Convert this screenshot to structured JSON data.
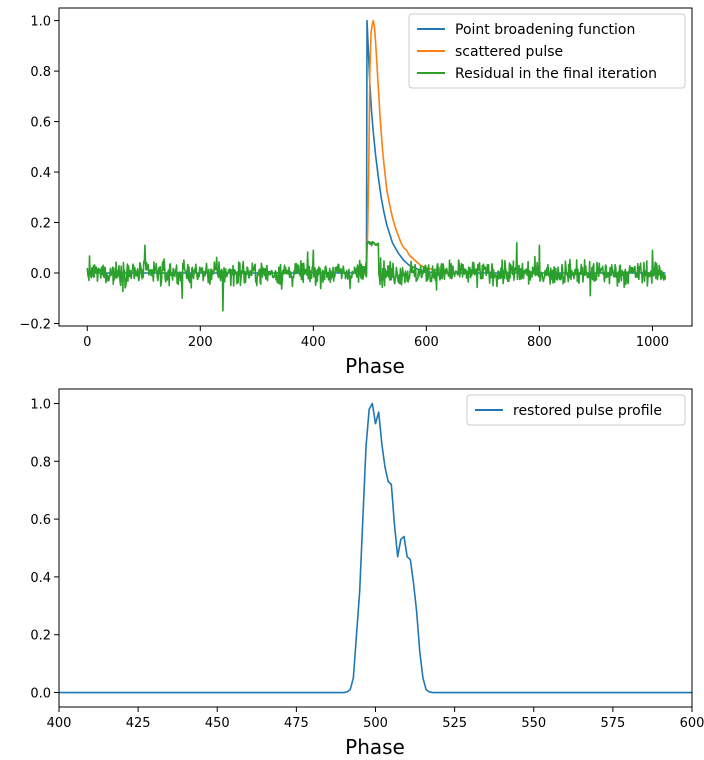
{
  "chart_data": [
    {
      "type": "line",
      "title": "",
      "xlabel": "Phase",
      "ylabel": "",
      "xlim": [
        -50,
        1070
      ],
      "ylim": [
        -0.21,
        1.05
      ],
      "xticks": [
        0,
        200,
        400,
        600,
        800,
        1000
      ],
      "yticks": [
        -0.2,
        0.0,
        0.2,
        0.4,
        0.6,
        0.8,
        1.0
      ],
      "xtick_labels": [
        "0",
        "200",
        "400",
        "600",
        "800",
        "1000"
      ],
      "ytick_labels": [
        "−0.2",
        "0.0",
        "0.2",
        "0.4",
        "0.6",
        "0.8",
        "1.0"
      ],
      "grid": false,
      "legend_position": "top-right",
      "series": [
        {
          "name": "Point broadening function",
          "color": "#1f77b4",
          "x": [
            0,
            490,
            494,
            495,
            496,
            498,
            500,
            503,
            506,
            510,
            515,
            520,
            525,
            530,
            540,
            550,
            560,
            570,
            580,
            590,
            600,
            620,
            650,
            700,
            800,
            1023
          ],
          "y": [
            0,
            0,
            0,
            1.0,
            0.95,
            0.85,
            0.75,
            0.64,
            0.56,
            0.47,
            0.38,
            0.3,
            0.24,
            0.19,
            0.12,
            0.08,
            0.05,
            0.03,
            0.02,
            0.01,
            0.005,
            0,
            0,
            0,
            0,
            0
          ]
        },
        {
          "name": "scattered pulse",
          "color": "#ff7f0e",
          "x": [
            480,
            490,
            494,
            496,
            498,
            500,
            502,
            504,
            506,
            508,
            510,
            512,
            514,
            516,
            518,
            520,
            522,
            525,
            528,
            530,
            535,
            540,
            545,
            550,
            555,
            560,
            565,
            570,
            575,
            580,
            590,
            600,
            620
          ],
          "y": [
            0,
            0,
            0.05,
            0.15,
            0.4,
            0.8,
            0.95,
            0.98,
            1.0,
            0.98,
            0.92,
            0.85,
            0.77,
            0.7,
            0.62,
            0.56,
            0.5,
            0.43,
            0.37,
            0.33,
            0.27,
            0.22,
            0.18,
            0.15,
            0.12,
            0.1,
            0.09,
            0.07,
            0.06,
            0.05,
            0.03,
            0.02,
            0.01
          ]
        },
        {
          "name": "Residual in the final iteration",
          "color": "#2ca02c",
          "x_start": 0,
          "x_end": 1023,
          "noise_sigma": 0.04,
          "plateau": [
            [
              495,
              0.12
            ],
            [
              515,
              0.12
            ]
          ],
          "extremes": [
            [
              102,
              0.11
            ],
            [
              168,
              -0.1
            ],
            [
              240,
              -0.15
            ],
            [
              400,
              0.09
            ],
            [
              760,
              0.12
            ],
            [
              800,
              0.11
            ],
            [
              890,
              -0.09
            ],
            [
              1000,
              0.09
            ]
          ]
        }
      ]
    },
    {
      "type": "line",
      "title": "",
      "xlabel": "Phase",
      "ylabel": "",
      "xlim": [
        400,
        600
      ],
      "ylim": [
        -0.05,
        1.05
      ],
      "xticks": [
        400,
        425,
        450,
        475,
        500,
        525,
        550,
        575,
        600
      ],
      "yticks": [
        0.0,
        0.2,
        0.4,
        0.6,
        0.8,
        1.0
      ],
      "xtick_labels": [
        "400",
        "425",
        "450",
        "475",
        "500",
        "525",
        "550",
        "575",
        "600"
      ],
      "ytick_labels": [
        "0.0",
        "0.2",
        "0.4",
        "0.6",
        "0.8",
        "1.0"
      ],
      "grid": false,
      "legend_position": "top-right",
      "series": [
        {
          "name": "restored pulse profile",
          "color": "#1f77b4",
          "x": [
            400,
            490,
            491,
            492,
            493,
            494,
            495,
            496,
            497,
            498,
            499,
            500,
            501,
            502,
            503,
            504,
            505,
            506,
            507,
            508,
            509,
            510,
            511,
            512,
            513,
            514,
            515,
            516,
            517,
            518,
            519,
            600
          ],
          "y": [
            0,
            0,
            0.002,
            0.01,
            0.05,
            0.2,
            0.35,
            0.6,
            0.85,
            0.98,
            1.0,
            0.93,
            0.97,
            0.86,
            0.78,
            0.73,
            0.72,
            0.58,
            0.47,
            0.53,
            0.54,
            0.47,
            0.46,
            0.38,
            0.28,
            0.14,
            0.05,
            0.01,
            0.002,
            0,
            0,
            0
          ]
        }
      ]
    }
  ]
}
